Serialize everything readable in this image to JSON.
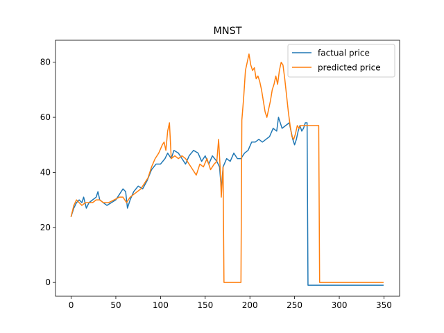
{
  "chart_data": {
    "type": "line",
    "title": "MNST",
    "xlabel": "",
    "ylabel": "",
    "xlim": [
      -17.5,
      367.5
    ],
    "ylim": [
      -5,
      88
    ],
    "xticks": [
      0,
      50,
      100,
      150,
      200,
      250,
      300,
      350
    ],
    "yticks": [
      0,
      20,
      40,
      60,
      80
    ],
    "grid": false,
    "legend": "top-right",
    "series": [
      {
        "name": "factual price",
        "color": "#1f77b4",
        "points": [
          [
            0,
            24
          ],
          [
            3,
            27
          ],
          [
            6,
            29
          ],
          [
            9,
            30
          ],
          [
            12,
            29
          ],
          [
            14,
            31
          ],
          [
            17,
            27
          ],
          [
            20,
            29
          ],
          [
            24,
            30
          ],
          [
            28,
            31
          ],
          [
            30,
            33
          ],
          [
            32,
            30
          ],
          [
            36,
            29
          ],
          [
            40,
            28
          ],
          [
            45,
            29
          ],
          [
            50,
            30
          ],
          [
            54,
            32
          ],
          [
            58,
            34
          ],
          [
            61,
            33
          ],
          [
            63,
            27
          ],
          [
            66,
            30
          ],
          [
            70,
            33
          ],
          [
            75,
            35
          ],
          [
            80,
            34
          ],
          [
            85,
            37
          ],
          [
            90,
            41
          ],
          [
            95,
            43
          ],
          [
            100,
            43
          ],
          [
            105,
            45
          ],
          [
            108,
            47
          ],
          [
            112,
            45
          ],
          [
            115,
            48
          ],
          [
            120,
            47
          ],
          [
            124,
            45
          ],
          [
            128,
            43
          ],
          [
            132,
            46
          ],
          [
            137,
            48
          ],
          [
            142,
            47
          ],
          [
            146,
            44
          ],
          [
            150,
            46
          ],
          [
            154,
            43
          ],
          [
            158,
            46
          ],
          [
            163,
            44
          ],
          [
            166,
            42
          ],
          [
            168,
            34
          ],
          [
            170,
            42
          ],
          [
            174,
            45
          ],
          [
            178,
            44
          ],
          [
            182,
            47
          ],
          [
            186,
            45
          ],
          [
            190,
            45
          ],
          [
            194,
            47
          ],
          [
            198,
            48
          ],
          [
            202,
            51
          ],
          [
            206,
            51
          ],
          [
            210,
            52
          ],
          [
            214,
            51
          ],
          [
            218,
            52
          ],
          [
            222,
            53
          ],
          [
            226,
            56
          ],
          [
            230,
            55
          ],
          [
            232,
            60
          ],
          [
            236,
            56
          ],
          [
            240,
            57
          ],
          [
            244,
            58
          ],
          [
            246,
            55
          ],
          [
            248,
            52
          ],
          [
            250,
            50
          ],
          [
            252,
            52
          ],
          [
            254,
            55
          ],
          [
            256,
            57
          ],
          [
            258,
            55
          ],
          [
            260,
            56
          ],
          [
            262,
            58
          ],
          [
            264,
            58
          ],
          [
            265,
            -1
          ],
          [
            349,
            -1
          ]
        ]
      },
      {
        "name": "predicted price",
        "color": "#ff7f0e",
        "points": [
          [
            0,
            24
          ],
          [
            3,
            28
          ],
          [
            6,
            30
          ],
          [
            9,
            29
          ],
          [
            12,
            28
          ],
          [
            16,
            29
          ],
          [
            20,
            29
          ],
          [
            24,
            29
          ],
          [
            28,
            30
          ],
          [
            32,
            30
          ],
          [
            36,
            29
          ],
          [
            42,
            29
          ],
          [
            48,
            30
          ],
          [
            54,
            31
          ],
          [
            58,
            31
          ],
          [
            62,
            29
          ],
          [
            66,
            31
          ],
          [
            70,
            32
          ],
          [
            74,
            33
          ],
          [
            78,
            34
          ],
          [
            82,
            36
          ],
          [
            86,
            38
          ],
          [
            90,
            42
          ],
          [
            94,
            45
          ],
          [
            98,
            47
          ],
          [
            102,
            50
          ],
          [
            104,
            51
          ],
          [
            106,
            48
          ],
          [
            108,
            55
          ],
          [
            110,
            58
          ],
          [
            112,
            45
          ],
          [
            116,
            46
          ],
          [
            120,
            45
          ],
          [
            124,
            46
          ],
          [
            128,
            45
          ],
          [
            132,
            43
          ],
          [
            136,
            41
          ],
          [
            140,
            39
          ],
          [
            144,
            43
          ],
          [
            148,
            42
          ],
          [
            152,
            45
          ],
          [
            156,
            41
          ],
          [
            160,
            43
          ],
          [
            163,
            44
          ],
          [
            165,
            52
          ],
          [
            167,
            40
          ],
          [
            168,
            31
          ],
          [
            170,
            42
          ],
          [
            171,
            0
          ],
          [
            190,
            0
          ],
          [
            191,
            59
          ],
          [
            193,
            67
          ],
          [
            195,
            77
          ],
          [
            197,
            80
          ],
          [
            199,
            83
          ],
          [
            201,
            79
          ],
          [
            203,
            77
          ],
          [
            205,
            78
          ],
          [
            207,
            74
          ],
          [
            209,
            75
          ],
          [
            211,
            73
          ],
          [
            213,
            70
          ],
          [
            215,
            66
          ],
          [
            217,
            62
          ],
          [
            219,
            60
          ],
          [
            221,
            63
          ],
          [
            223,
            66
          ],
          [
            225,
            70
          ],
          [
            227,
            72
          ],
          [
            229,
            75
          ],
          [
            231,
            72
          ],
          [
            233,
            77
          ],
          [
            235,
            80
          ],
          [
            237,
            79
          ],
          [
            239,
            74
          ],
          [
            241,
            68
          ],
          [
            243,
            62
          ],
          [
            245,
            57
          ],
          [
            247,
            53
          ],
          [
            249,
            52
          ],
          [
            251,
            54
          ],
          [
            253,
            57
          ],
          [
            255,
            56
          ],
          [
            257,
            57
          ],
          [
            262,
            57
          ],
          [
            270,
            57
          ],
          [
            277,
            57
          ],
          [
            278,
            0
          ],
          [
            349,
            0
          ]
        ]
      }
    ]
  }
}
